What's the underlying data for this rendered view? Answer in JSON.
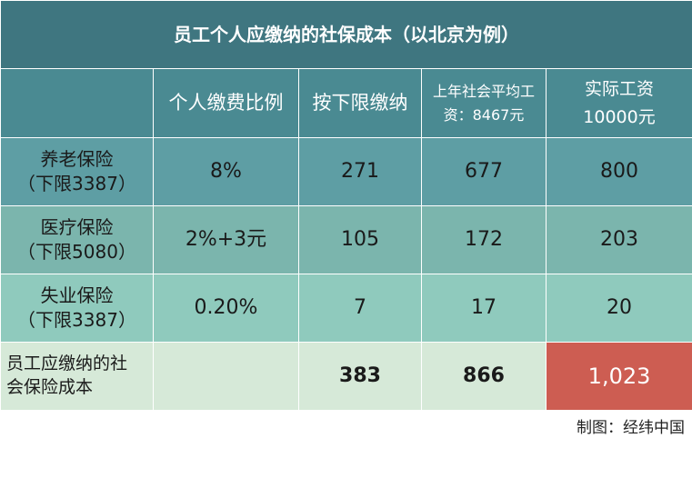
{
  "table": {
    "title": "员工个人应缴纳的社保成本（以北京为例）",
    "headers": {
      "col1": "个人缴费比例",
      "col2": "按下限缴纳",
      "col3_line1": "上年社会平均工",
      "col3_line2": "资：8467元",
      "col4_line1": "实际工资",
      "col4_line2": "10000元"
    },
    "rows": [
      {
        "label_line1": "养老保险",
        "label_line2": "（下限3387）",
        "rate": "8%",
        "min": "271",
        "avg": "677",
        "actual": "800"
      },
      {
        "label_line1": "医疗保险",
        "label_line2": "（下限5080）",
        "rate": "2%+3元",
        "min": "105",
        "avg": "172",
        "actual": "203"
      },
      {
        "label_line1": "失业保险",
        "label_line2": "（下限3387）",
        "rate": "0.20%",
        "min": "7",
        "avg": "17",
        "actual": "20"
      }
    ],
    "total": {
      "label_line1": "员工应缴纳的社",
      "label_line2": "会保险成本",
      "rate": "",
      "min": "383",
      "avg": "866",
      "actual": "1,023"
    }
  },
  "source": "制图：经纬中国",
  "colors": {
    "title_bg": "#3f7680",
    "header_bg": "#4a8a92",
    "row1_bg": "#5e9ea4",
    "row2_bg": "#7bb5ad",
    "row3_bg": "#8fcabd",
    "total_bg": "#d6e9d8",
    "highlight": "#cd5d52"
  }
}
